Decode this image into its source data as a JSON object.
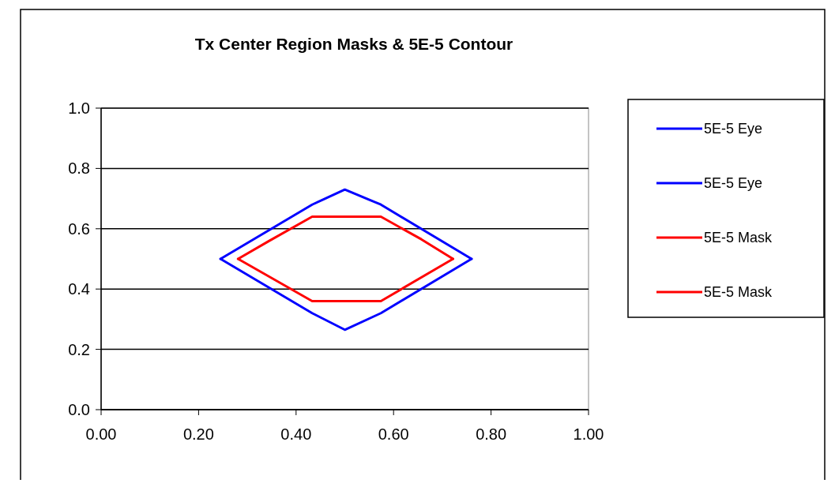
{
  "chart_data": {
    "type": "line",
    "title": "Tx Center Region Masks & 5E-5 Contour",
    "xlim": [
      0,
      1
    ],
    "ylim": [
      0,
      1
    ],
    "xticks": [
      {
        "value": 0,
        "label": "0.00"
      },
      {
        "value": 0.2,
        "label": "0.20"
      },
      {
        "value": 0.4,
        "label": "0.40"
      },
      {
        "value": 0.6,
        "label": "0.60"
      },
      {
        "value": 0.8,
        "label": "0.80"
      },
      {
        "value": 1,
        "label": "1.00"
      }
    ],
    "yticks": [
      {
        "value": 0,
        "label": "0.0"
      },
      {
        "value": 0.2,
        "label": "0.2"
      },
      {
        "value": 0.4,
        "label": "0.4"
      },
      {
        "value": 0.6,
        "label": "0.6"
      },
      {
        "value": 0.8,
        "label": "0.8"
      },
      {
        "value": 1,
        "label": "1.0"
      }
    ],
    "grid": "y",
    "legend": "right",
    "marker": "none",
    "line_style": "solid",
    "series": [
      {
        "name": "5E-5 Eye",
        "color": "#0000ff",
        "x": [
          0.245,
          0.433,
          0.5,
          0.574,
          0.76
        ],
        "values": [
          0.5,
          0.68,
          0.73,
          0.68,
          0.5
        ]
      },
      {
        "name": "5E-5 Eye",
        "color": "#0000ff",
        "x": [
          0.245,
          0.433,
          0.5,
          0.574,
          0.76
        ],
        "values": [
          0.5,
          0.32,
          0.265,
          0.32,
          0.5
        ]
      },
      {
        "name": "5E-5 Mask",
        "color": "#ff0000",
        "x": [
          0.281,
          0.345,
          0.433,
          0.574,
          0.657,
          0.722
        ],
        "values": [
          0.5,
          0.56,
          0.64,
          0.64,
          0.565,
          0.5
        ]
      },
      {
        "name": "5E-5 Mask",
        "color": "#ff0000",
        "x": [
          0.281,
          0.433,
          0.574,
          0.722
        ],
        "values": [
          0.5,
          0.36,
          0.36,
          0.5
        ]
      }
    ]
  }
}
